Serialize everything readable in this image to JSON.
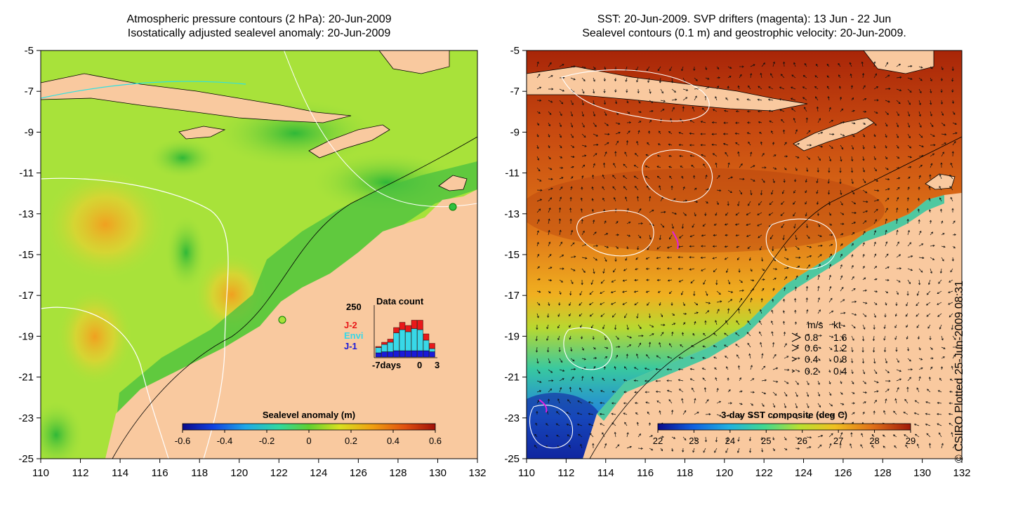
{
  "left_panel": {
    "title_line1": "Atmospheric pressure contours (2 hPa): 20-Jun-2009",
    "title_line2": "Isostatically adjusted sealevel anomaly: 20-Jun-2009",
    "colorbar": {
      "label": "Sealevel anomaly (m)",
      "ticks": [
        "-0.6",
        "-0.4",
        "-0.2",
        "0",
        "0.2",
        "0.4",
        "0.6"
      ],
      "range": [
        -0.6,
        0.6
      ]
    },
    "data_count_inset": {
      "title": "Data count",
      "y_label": "250",
      "x_ticks": [
        "-7days",
        "0",
        "3"
      ],
      "legend": [
        {
          "label": "J-2",
          "color": "#e8191a"
        },
        {
          "label": "Envi",
          "color": "#38d8e8"
        },
        {
          "label": "J-1",
          "color": "#1a1ad8"
        }
      ]
    }
  },
  "right_panel": {
    "title_line1": "SST: 20-Jun-2009. SVP drifters (magenta): 13 Jun - 22 Jun",
    "title_line2": "Sealevel contours (0.1 m) and geostrophic velocity: 20-Jun-2009.",
    "colorbar": {
      "label": "3-day SST composite (deg C)",
      "ticks": [
        "22",
        "23",
        "24",
        "25",
        "26",
        "27",
        "28",
        "29"
      ],
      "range": [
        22,
        29
      ]
    },
    "velocity_legend": {
      "header_ms": "m/s",
      "header_kt": "kt",
      "rows": [
        {
          "ms": "0.8",
          "kt": "1.6"
        },
        {
          "ms": "0.6",
          "kt": "1.2"
        },
        {
          "ms": "0.4",
          "kt": "0.8"
        },
        {
          "ms": "0.2",
          "kt": "0.4"
        }
      ]
    }
  },
  "axes": {
    "x_ticks": [
      "110",
      "112",
      "114",
      "116",
      "118",
      "120",
      "122",
      "124",
      "126",
      "128",
      "130",
      "132"
    ],
    "y_ticks": [
      "-5",
      "-7",
      "-9",
      "-11",
      "-13",
      "-15",
      "-17",
      "-19",
      "-21",
      "-23",
      "-25"
    ],
    "lon_range": [
      110,
      132
    ],
    "lat_range": [
      -25,
      -5
    ]
  },
  "credit": "© CSIRO Plotted 25-Jun-2009 08:31",
  "colors": {
    "land": "#f9c99f",
    "ocean_left": "#a8e23a",
    "ocean_right_north": "#a52a0a",
    "ocean_right_south": "#2a6ad8"
  }
}
